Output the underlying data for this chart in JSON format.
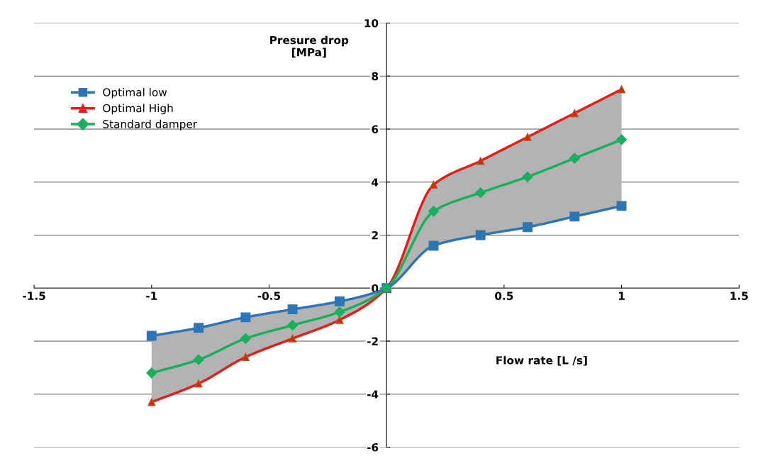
{
  "chart_data": {
    "type": "line",
    "x": [
      -1,
      -0.8,
      -0.6,
      -0.4,
      -0.2,
      0,
      0.2,
      0.4,
      0.6,
      0.8,
      1
    ],
    "series": [
      {
        "name": "Optimal low",
        "color": "#2e75b6",
        "marker": "square",
        "values": [
          -1.8,
          -1.5,
          -1.1,
          -0.8,
          -0.5,
          0,
          1.6,
          2.0,
          2.3,
          2.7,
          3.1
        ]
      },
      {
        "name": "Optimal High",
        "color": "#e0201b",
        "marker": "triangle",
        "values": [
          -4.3,
          -3.6,
          -2.6,
          -1.9,
          -1.2,
          0,
          3.9,
          4.8,
          5.7,
          6.6,
          7.5
        ]
      },
      {
        "name": "Standard damper",
        "color": "#1aaf5d",
        "marker": "diamond",
        "values": [
          -3.2,
          -2.7,
          -1.9,
          -1.4,
          -0.9,
          0,
          2.9,
          3.6,
          4.2,
          4.9,
          5.6
        ],
        "lower": [
          -1.8,
          -1.5,
          -1.1,
          -0.8,
          -0.5,
          0,
          1.6,
          2.0,
          2.3,
          2.7,
          3.1
        ],
        "upper": [
          -4.3,
          -3.6,
          -2.6,
          -1.9,
          -1.2,
          0,
          3.9,
          4.8,
          5.7,
          6.6,
          7.5
        ]
      }
    ],
    "xlabel": "Flow rate [L /s]",
    "ylabel": "Presure drop\n[MPa]",
    "xlim": [
      -1.5,
      1.5
    ],
    "xticks": [
      -1.5,
      -1,
      -0.5,
      {
        "value": 0,
        "label": null
      },
      0.5,
      1,
      1.5
    ],
    "ylim": [
      -6,
      10
    ],
    "yticks": [
      -6,
      -4,
      -2,
      0,
      2,
      4,
      6,
      8,
      10
    ],
    "grid": "y",
    "legend": "top left"
  }
}
